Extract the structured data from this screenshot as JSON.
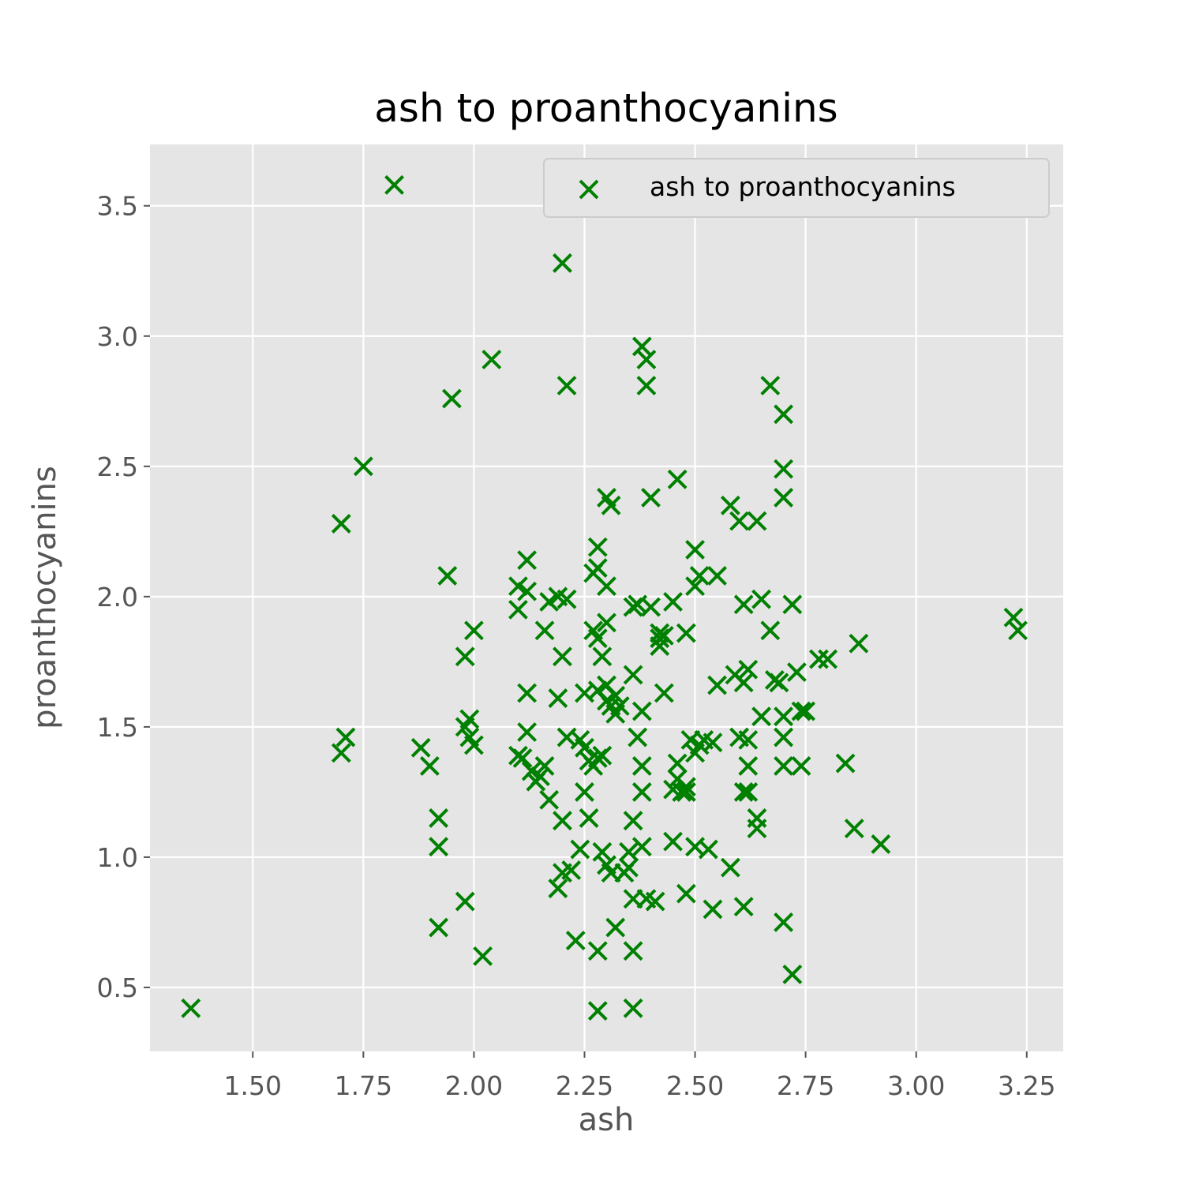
{
  "chart_data": {
    "type": "scatter",
    "title": "ash to proanthocyanins",
    "xlabel": "ash",
    "ylabel": "proanthocyanins",
    "xlim": [
      1.2675,
      3.3325
    ],
    "ylim": [
      0.2545,
      3.7355
    ],
    "xticks": [
      1.5,
      1.75,
      2.0,
      2.25,
      2.5,
      2.75,
      3.0,
      3.25
    ],
    "xtick_labels": [
      "1.50",
      "1.75",
      "2.00",
      "2.25",
      "2.50",
      "2.75",
      "3.00",
      "3.25"
    ],
    "yticks": [
      0.5,
      1.0,
      1.5,
      2.0,
      2.5,
      3.0,
      3.5
    ],
    "ytick_labels": [
      "0.5",
      "1.0",
      "1.5",
      "2.0",
      "2.5",
      "3.0",
      "3.5"
    ],
    "grid": true,
    "legend_position": "top-right",
    "marker": "x",
    "colors": {
      "marker": "#008000",
      "plot_bg": "#e5e5e5",
      "grid": "#ffffff",
      "tick": "#555555"
    },
    "series": [
      {
        "name": "ash to proanthocyanins",
        "points": [
          [
            1.36,
            0.42
          ],
          [
            1.82,
            3.58
          ],
          [
            2.2,
            3.28
          ],
          [
            2.04,
            2.91
          ],
          [
            1.95,
            2.76
          ],
          [
            2.21,
            2.81
          ],
          [
            1.75,
            2.5
          ],
          [
            1.7,
            2.28
          ],
          [
            1.71,
            1.46
          ],
          [
            1.7,
            1.4
          ],
          [
            1.88,
            1.42
          ],
          [
            1.9,
            1.35
          ],
          [
            1.92,
            1.15
          ],
          [
            1.92,
            1.04
          ],
          [
            1.92,
            0.73
          ],
          [
            1.94,
            2.08
          ],
          [
            1.98,
            1.77
          ],
          [
            2.0,
            1.87
          ],
          [
            1.98,
            1.5
          ],
          [
            1.99,
            1.53
          ],
          [
            1.99,
            1.46
          ],
          [
            2.0,
            1.43
          ],
          [
            1.98,
            0.83
          ],
          [
            2.02,
            0.62
          ],
          [
            2.1,
            2.04
          ],
          [
            2.1,
            1.95
          ],
          [
            2.12,
            2.14
          ],
          [
            2.12,
            2.02
          ],
          [
            2.17,
            1.98
          ],
          [
            2.19,
            2.0
          ],
          [
            2.21,
            1.99
          ],
          [
            2.2,
            1.77
          ],
          [
            2.16,
            1.87
          ],
          [
            2.12,
            1.63
          ],
          [
            2.19,
            1.61
          ],
          [
            2.12,
            1.48
          ],
          [
            2.1,
            1.39
          ],
          [
            2.11,
            1.38
          ],
          [
            2.13,
            1.33
          ],
          [
            2.14,
            1.29
          ],
          [
            2.16,
            1.35
          ],
          [
            2.15,
            1.31
          ],
          [
            2.17,
            1.22
          ],
          [
            2.2,
            1.14
          ],
          [
            2.21,
            1.46
          ],
          [
            2.24,
            1.45
          ],
          [
            2.19,
            0.88
          ],
          [
            2.2,
            0.94
          ],
          [
            2.22,
            0.95
          ],
          [
            2.24,
            1.03
          ],
          [
            2.23,
            0.68
          ],
          [
            2.28,
            2.19
          ],
          [
            2.27,
            2.09
          ],
          [
            2.28,
            2.11
          ],
          [
            2.3,
            2.04
          ],
          [
            2.27,
            1.87
          ],
          [
            2.28,
            1.84
          ],
          [
            2.3,
            1.9
          ],
          [
            2.29,
            1.77
          ],
          [
            2.3,
            2.38
          ],
          [
            2.31,
            2.35
          ],
          [
            2.25,
            1.63
          ],
          [
            2.28,
            1.64
          ],
          [
            2.3,
            1.66
          ],
          [
            2.32,
            1.62
          ],
          [
            2.3,
            1.6
          ],
          [
            2.31,
            1.58
          ],
          [
            2.33,
            1.58
          ],
          [
            2.32,
            1.55
          ],
          [
            2.25,
            1.42
          ],
          [
            2.27,
            1.35
          ],
          [
            2.29,
            1.39
          ],
          [
            2.26,
            1.37
          ],
          [
            2.28,
            1.38
          ],
          [
            2.25,
            1.25
          ],
          [
            2.26,
            1.15
          ],
          [
            2.29,
            1.02
          ],
          [
            2.3,
            0.97
          ],
          [
            2.31,
            0.94
          ],
          [
            2.34,
            0.94
          ],
          [
            2.35,
            0.96
          ],
          [
            2.32,
            0.73
          ],
          [
            2.28,
            0.64
          ],
          [
            2.28,
            0.41
          ],
          [
            2.36,
            0.64
          ],
          [
            2.36,
            0.42
          ],
          [
            2.38,
            2.96
          ],
          [
            2.39,
            2.91
          ],
          [
            2.39,
            2.81
          ],
          [
            2.4,
            2.38
          ],
          [
            2.36,
            1.96
          ],
          [
            2.37,
            1.97
          ],
          [
            2.4,
            1.96
          ],
          [
            2.36,
            1.7
          ],
          [
            2.38,
            1.56
          ],
          [
            2.37,
            1.46
          ],
          [
            2.38,
            1.35
          ],
          [
            2.38,
            1.25
          ],
          [
            2.36,
            1.14
          ],
          [
            2.35,
            1.02
          ],
          [
            2.38,
            1.04
          ],
          [
            2.36,
            0.84
          ],
          [
            2.39,
            0.84
          ],
          [
            2.41,
            0.83
          ],
          [
            2.42,
            1.86
          ],
          [
            2.42,
            1.84
          ],
          [
            2.43,
            1.85
          ],
          [
            2.42,
            1.81
          ],
          [
            2.43,
            1.63
          ],
          [
            2.45,
            1.98
          ],
          [
            2.46,
            2.45
          ],
          [
            2.48,
            1.86
          ],
          [
            2.5,
            2.18
          ],
          [
            2.51,
            2.08
          ],
          [
            2.5,
            2.04
          ],
          [
            2.55,
            2.08
          ],
          [
            2.45,
            1.26
          ],
          [
            2.46,
            1.36
          ],
          [
            2.47,
            1.25
          ],
          [
            2.46,
            1.3
          ],
          [
            2.48,
            1.27
          ],
          [
            2.48,
            1.25
          ],
          [
            2.48,
            1.25
          ],
          [
            2.49,
            1.45
          ],
          [
            2.5,
            1.4
          ],
          [
            2.51,
            1.43
          ],
          [
            2.52,
            1.45
          ],
          [
            2.54,
            1.44
          ],
          [
            2.45,
            1.06
          ],
          [
            2.5,
            1.04
          ],
          [
            2.53,
            1.03
          ],
          [
            2.48,
            0.86
          ],
          [
            2.54,
            0.8
          ],
          [
            2.58,
            2.35
          ],
          [
            2.6,
            2.29
          ],
          [
            2.64,
            2.29
          ],
          [
            2.61,
            1.97
          ],
          [
            2.65,
            1.99
          ],
          [
            2.55,
            1.66
          ],
          [
            2.59,
            1.7
          ],
          [
            2.61,
            1.67
          ],
          [
            2.62,
            1.72
          ],
          [
            2.6,
            1.46
          ],
          [
            2.62,
            1.45
          ],
          [
            2.62,
            1.35
          ],
          [
            2.61,
            1.25
          ],
          [
            2.62,
            1.25
          ],
          [
            2.64,
            1.15
          ],
          [
            2.64,
            1.11
          ],
          [
            2.58,
            0.96
          ],
          [
            2.61,
            0.81
          ],
          [
            2.67,
            2.81
          ],
          [
            2.7,
            2.7
          ],
          [
            2.7,
            2.49
          ],
          [
            2.7,
            2.38
          ],
          [
            2.72,
            1.97
          ],
          [
            2.67,
            1.87
          ],
          [
            2.68,
            1.68
          ],
          [
            2.69,
            1.67
          ],
          [
            2.73,
            1.71
          ],
          [
            2.65,
            1.54
          ],
          [
            2.7,
            1.54
          ],
          [
            2.74,
            1.56
          ],
          [
            2.75,
            1.56
          ],
          [
            2.7,
            1.46
          ],
          [
            2.7,
            1.35
          ],
          [
            2.74,
            1.35
          ],
          [
            2.7,
            0.75
          ],
          [
            2.72,
            0.55
          ],
          [
            2.78,
            1.76
          ],
          [
            2.8,
            1.76
          ],
          [
            2.87,
            1.82
          ],
          [
            2.84,
            1.36
          ],
          [
            2.86,
            1.11
          ],
          [
            2.92,
            1.05
          ],
          [
            3.22,
            1.92
          ],
          [
            3.23,
            1.87
          ]
        ]
      }
    ]
  }
}
